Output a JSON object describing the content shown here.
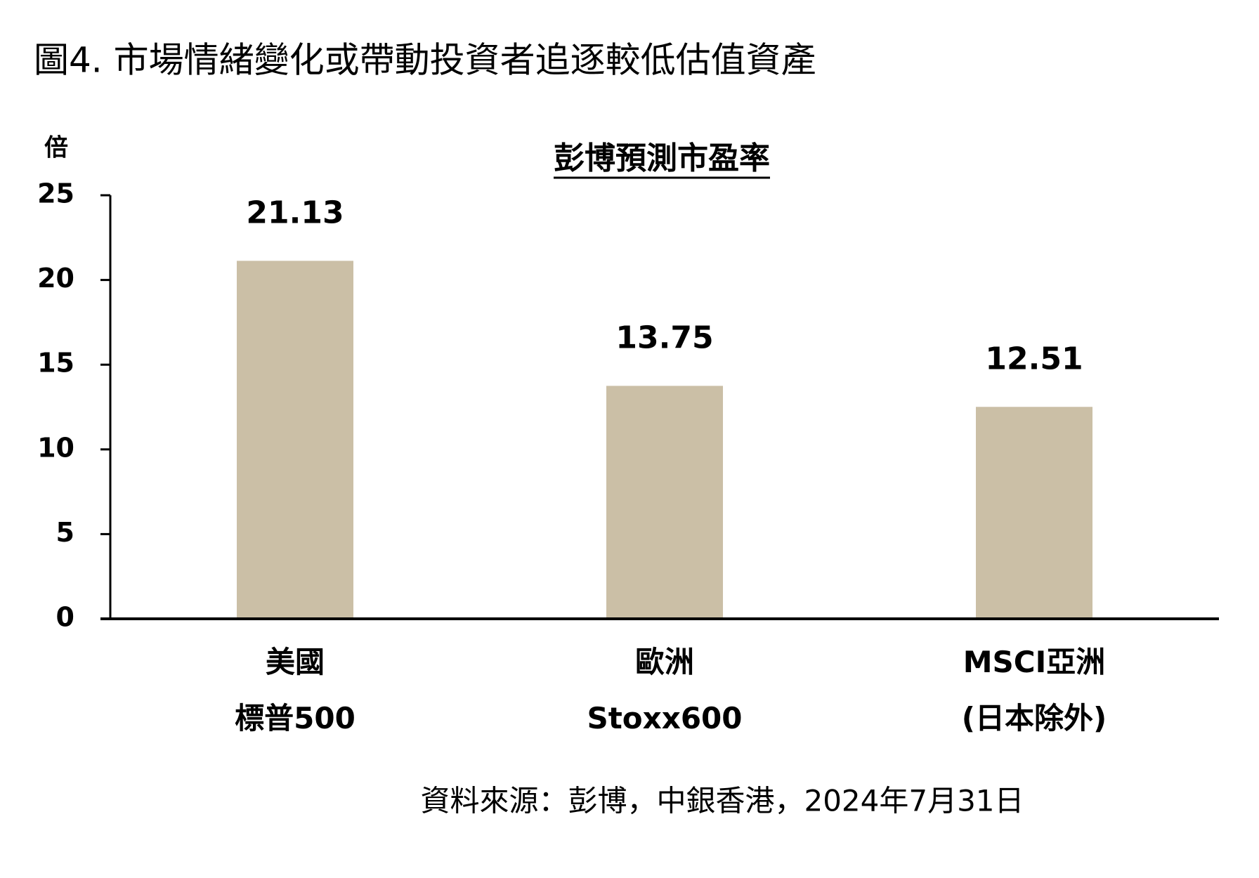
{
  "figure_title": "圖4. 市場情緒變化或帶動投資者追逐較低估值資產",
  "source": "資料來源：彭博，中銀香港，2024年7月31日",
  "chart_data": {
    "type": "bar",
    "title": "彭博預測市盈率",
    "y_label": "倍",
    "categories": [
      "美國\n標普500",
      "歐洲\nStoxx600",
      "MSCI亞洲\n(日本除外)"
    ],
    "values": [
      21.13,
      13.75,
      12.51
    ],
    "color": "#cbbfa6",
    "ylim": [
      0,
      25
    ],
    "yticks": [
      0,
      5,
      10,
      15,
      20,
      25
    ],
    "grid": false
  }
}
